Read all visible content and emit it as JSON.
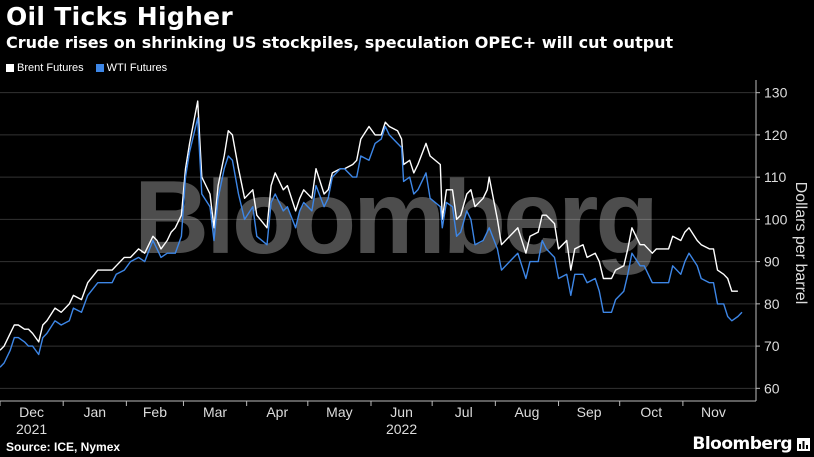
{
  "title": "Oil Ticks Higher",
  "subtitle": "Crude rises on shrinking US stockpiles, speculation OPEC+ will cut output",
  "source": "Source: ICE, Nymex",
  "brand": "Bloomberg",
  "watermark": "Bloomberg",
  "colors": {
    "brent": "#ffffff",
    "wti": "#3d86e6",
    "background": "#000000",
    "grid": "#333333"
  },
  "legend": [
    {
      "label": "Brent Futures",
      "color": "#ffffff"
    },
    {
      "label": "WTI Futures",
      "color": "#3d86e6"
    }
  ],
  "chart_data": {
    "type": "line",
    "title": "Oil Ticks Higher",
    "subtitle": "Crude rises on shrinking US stockpiles, speculation OPEC+ will cut output",
    "ylabel": "Dollars per barrel",
    "ylim": [
      57,
      133
    ],
    "yticks": [
      60,
      70,
      80,
      90,
      100,
      110,
      120,
      130
    ],
    "x_tick_labels": [
      "Dec",
      "Jan",
      "Feb",
      "Mar",
      "Apr",
      "May",
      "Jun",
      "Jul",
      "Aug",
      "Sep",
      "Oct",
      "Nov"
    ],
    "x_year_labels": [
      {
        "label": "2021",
        "month": "Dec"
      },
      {
        "label": "2022",
        "month": "Jun"
      }
    ],
    "grid": "horizontal",
    "legend_position": "top-left",
    "x_start": "2021-12-01",
    "x_end": "2022-11-30",
    "series": [
      {
        "name": "Brent Futures",
        "color": "#ffffff",
        "points": [
          [
            "2021-12-01",
            69
          ],
          [
            "2021-12-03",
            70
          ],
          [
            "2021-12-06",
            73
          ],
          [
            "2021-12-08",
            75
          ],
          [
            "2021-12-10",
            75
          ],
          [
            "2021-12-13",
            74
          ],
          [
            "2021-12-15",
            74
          ],
          [
            "2021-12-17",
            73
          ],
          [
            "2021-12-20",
            71
          ],
          [
            "2021-12-22",
            75
          ],
          [
            "2021-12-24",
            76
          ],
          [
            "2021-12-28",
            79
          ],
          [
            "2021-12-31",
            78
          ],
          [
            "2022-01-04",
            80
          ],
          [
            "2022-01-06",
            82
          ],
          [
            "2022-01-10",
            81
          ],
          [
            "2022-01-13",
            85
          ],
          [
            "2022-01-18",
            88
          ],
          [
            "2022-01-21",
            88
          ],
          [
            "2022-01-25",
            88
          ],
          [
            "2022-01-27",
            89
          ],
          [
            "2022-01-31",
            91
          ],
          [
            "2022-02-03",
            91
          ],
          [
            "2022-02-07",
            93
          ],
          [
            "2022-02-10",
            92
          ],
          [
            "2022-02-14",
            96
          ],
          [
            "2022-02-16",
            95
          ],
          [
            "2022-02-18",
            93
          ],
          [
            "2022-02-21",
            95
          ],
          [
            "2022-02-23",
            97
          ],
          [
            "2022-02-25",
            98
          ],
          [
            "2022-02-28",
            101
          ],
          [
            "2022-03-02",
            112
          ],
          [
            "2022-03-04",
            118
          ],
          [
            "2022-03-08",
            128
          ],
          [
            "2022-03-10",
            110
          ],
          [
            "2022-03-14",
            106
          ],
          [
            "2022-03-16",
            98
          ],
          [
            "2022-03-18",
            108
          ],
          [
            "2022-03-21",
            115
          ],
          [
            "2022-03-23",
            121
          ],
          [
            "2022-03-25",
            120
          ],
          [
            "2022-03-28",
            112
          ],
          [
            "2022-03-31",
            105
          ],
          [
            "2022-04-04",
            107
          ],
          [
            "2022-04-06",
            101
          ],
          [
            "2022-04-11",
            98
          ],
          [
            "2022-04-13",
            108
          ],
          [
            "2022-04-15",
            111
          ],
          [
            "2022-04-19",
            107
          ],
          [
            "2022-04-21",
            108
          ],
          [
            "2022-04-25",
            102
          ],
          [
            "2022-04-27",
            105
          ],
          [
            "2022-04-29",
            107
          ],
          [
            "2022-05-03",
            105
          ],
          [
            "2022-05-05",
            112
          ],
          [
            "2022-05-09",
            106
          ],
          [
            "2022-05-11",
            107
          ],
          [
            "2022-05-13",
            111
          ],
          [
            "2022-05-17",
            112
          ],
          [
            "2022-05-19",
            112
          ],
          [
            "2022-05-23",
            113
          ],
          [
            "2022-05-25",
            114
          ],
          [
            "2022-05-27",
            119
          ],
          [
            "2022-05-31",
            122
          ],
          [
            "2022-06-03",
            120
          ],
          [
            "2022-06-06",
            120
          ],
          [
            "2022-06-08",
            123
          ],
          [
            "2022-06-10",
            122
          ],
          [
            "2022-06-14",
            121
          ],
          [
            "2022-06-16",
            119
          ],
          [
            "2022-06-17",
            113
          ],
          [
            "2022-06-20",
            114
          ],
          [
            "2022-06-22",
            111
          ],
          [
            "2022-06-24",
            113
          ],
          [
            "2022-06-28",
            118
          ],
          [
            "2022-06-30",
            115
          ],
          [
            "2022-07-05",
            113
          ],
          [
            "2022-07-06",
            100
          ],
          [
            "2022-07-08",
            107
          ],
          [
            "2022-07-11",
            107
          ],
          [
            "2022-07-13",
            100
          ],
          [
            "2022-07-15",
            101
          ],
          [
            "2022-07-18",
            106
          ],
          [
            "2022-07-20",
            107
          ],
          [
            "2022-07-22",
            103
          ],
          [
            "2022-07-26",
            105
          ],
          [
            "2022-07-28",
            107
          ],
          [
            "2022-07-29",
            110
          ],
          [
            "2022-08-02",
            100
          ],
          [
            "2022-08-04",
            94
          ],
          [
            "2022-08-08",
            96
          ],
          [
            "2022-08-10",
            97
          ],
          [
            "2022-08-12",
            98
          ],
          [
            "2022-08-16",
            92
          ],
          [
            "2022-08-18",
            96
          ],
          [
            "2022-08-22",
            97
          ],
          [
            "2022-08-24",
            101
          ],
          [
            "2022-08-26",
            101
          ],
          [
            "2022-08-30",
            99
          ],
          [
            "2022-09-01",
            93
          ],
          [
            "2022-09-05",
            95
          ],
          [
            "2022-09-07",
            88
          ],
          [
            "2022-09-09",
            93
          ],
          [
            "2022-09-13",
            94
          ],
          [
            "2022-09-15",
            91
          ],
          [
            "2022-09-19",
            92
          ],
          [
            "2022-09-21",
            90
          ],
          [
            "2022-09-23",
            86
          ],
          [
            "2022-09-27",
            86
          ],
          [
            "2022-09-29",
            88
          ],
          [
            "2022-10-03",
            89
          ],
          [
            "2022-10-05",
            93
          ],
          [
            "2022-10-07",
            98
          ],
          [
            "2022-10-11",
            94
          ],
          [
            "2022-10-13",
            94
          ],
          [
            "2022-10-17",
            92
          ],
          [
            "2022-10-19",
            93
          ],
          [
            "2022-10-21",
            93
          ],
          [
            "2022-10-25",
            93
          ],
          [
            "2022-10-27",
            96
          ],
          [
            "2022-10-31",
            95
          ],
          [
            "2022-11-02",
            97
          ],
          [
            "2022-11-04",
            98
          ],
          [
            "2022-11-08",
            95
          ],
          [
            "2022-11-10",
            94
          ],
          [
            "2022-11-14",
            93
          ],
          [
            "2022-11-16",
            93
          ],
          [
            "2022-11-18",
            88
          ],
          [
            "2022-11-21",
            87
          ],
          [
            "2022-11-23",
            86
          ],
          [
            "2022-11-25",
            83
          ],
          [
            "2022-11-28",
            83
          ]
        ]
      },
      {
        "name": "WTI Futures",
        "color": "#3d86e6",
        "points": [
          [
            "2021-12-01",
            65
          ],
          [
            "2021-12-03",
            66
          ],
          [
            "2021-12-06",
            69
          ],
          [
            "2021-12-08",
            72
          ],
          [
            "2021-12-10",
            72
          ],
          [
            "2021-12-13",
            71
          ],
          [
            "2021-12-15",
            70
          ],
          [
            "2021-12-17",
            70
          ],
          [
            "2021-12-20",
            68
          ],
          [
            "2021-12-22",
            72
          ],
          [
            "2021-12-24",
            73
          ],
          [
            "2021-12-28",
            76
          ],
          [
            "2021-12-31",
            75
          ],
          [
            "2022-01-04",
            76
          ],
          [
            "2022-01-06",
            79
          ],
          [
            "2022-01-10",
            78
          ],
          [
            "2022-01-13",
            82
          ],
          [
            "2022-01-18",
            85
          ],
          [
            "2022-01-21",
            85
          ],
          [
            "2022-01-25",
            85
          ],
          [
            "2022-01-27",
            87
          ],
          [
            "2022-01-31",
            88
          ],
          [
            "2022-02-03",
            90
          ],
          [
            "2022-02-07",
            91
          ],
          [
            "2022-02-10",
            90
          ],
          [
            "2022-02-14",
            95
          ],
          [
            "2022-02-16",
            93
          ],
          [
            "2022-02-18",
            91
          ],
          [
            "2022-02-21",
            92
          ],
          [
            "2022-02-23",
            92
          ],
          [
            "2022-02-25",
            92
          ],
          [
            "2022-02-28",
            96
          ],
          [
            "2022-03-02",
            110
          ],
          [
            "2022-03-04",
            116
          ],
          [
            "2022-03-08",
            124
          ],
          [
            "2022-03-10",
            106
          ],
          [
            "2022-03-14",
            103
          ],
          [
            "2022-03-16",
            95
          ],
          [
            "2022-03-18",
            105
          ],
          [
            "2022-03-21",
            112
          ],
          [
            "2022-03-23",
            115
          ],
          [
            "2022-03-25",
            114
          ],
          [
            "2022-03-28",
            106
          ],
          [
            "2022-03-31",
            100
          ],
          [
            "2022-04-04",
            103
          ],
          [
            "2022-04-06",
            96
          ],
          [
            "2022-04-11",
            94
          ],
          [
            "2022-04-13",
            104
          ],
          [
            "2022-04-15",
            106
          ],
          [
            "2022-04-19",
            102
          ],
          [
            "2022-04-21",
            103
          ],
          [
            "2022-04-25",
            98
          ],
          [
            "2022-04-27",
            102
          ],
          [
            "2022-04-29",
            104
          ],
          [
            "2022-05-03",
            102
          ],
          [
            "2022-05-05",
            108
          ],
          [
            "2022-05-09",
            103
          ],
          [
            "2022-05-11",
            105
          ],
          [
            "2022-05-13",
            110
          ],
          [
            "2022-05-17",
            112
          ],
          [
            "2022-05-19",
            112
          ],
          [
            "2022-05-23",
            110
          ],
          [
            "2022-05-25",
            110
          ],
          [
            "2022-05-27",
            115
          ],
          [
            "2022-05-31",
            114
          ],
          [
            "2022-06-03",
            118
          ],
          [
            "2022-06-06",
            119
          ],
          [
            "2022-06-08",
            122
          ],
          [
            "2022-06-10",
            120
          ],
          [
            "2022-06-14",
            118
          ],
          [
            "2022-06-16",
            117
          ],
          [
            "2022-06-17",
            109
          ],
          [
            "2022-06-20",
            110
          ],
          [
            "2022-06-22",
            106
          ],
          [
            "2022-06-24",
            107
          ],
          [
            "2022-06-28",
            111
          ],
          [
            "2022-06-30",
            105
          ],
          [
            "2022-07-05",
            103
          ],
          [
            "2022-07-06",
            98
          ],
          [
            "2022-07-08",
            104
          ],
          [
            "2022-07-11",
            103
          ],
          [
            "2022-07-13",
            96
          ],
          [
            "2022-07-15",
            97
          ],
          [
            "2022-07-18",
            102
          ],
          [
            "2022-07-20",
            100
          ],
          [
            "2022-07-22",
            94
          ],
          [
            "2022-07-26",
            95
          ],
          [
            "2022-07-28",
            97
          ],
          [
            "2022-07-29",
            98
          ],
          [
            "2022-08-02",
            93
          ],
          [
            "2022-08-04",
            88
          ],
          [
            "2022-08-08",
            90
          ],
          [
            "2022-08-10",
            91
          ],
          [
            "2022-08-12",
            92
          ],
          [
            "2022-08-16",
            86
          ],
          [
            "2022-08-18",
            90
          ],
          [
            "2022-08-22",
            90
          ],
          [
            "2022-08-24",
            95
          ],
          [
            "2022-08-26",
            93
          ],
          [
            "2022-08-30",
            91
          ],
          [
            "2022-09-01",
            86
          ],
          [
            "2022-09-05",
            87
          ],
          [
            "2022-09-07",
            82
          ],
          [
            "2022-09-09",
            87
          ],
          [
            "2022-09-13",
            87
          ],
          [
            "2022-09-15",
            85
          ],
          [
            "2022-09-19",
            86
          ],
          [
            "2022-09-21",
            83
          ],
          [
            "2022-09-23",
            78
          ],
          [
            "2022-09-27",
            78
          ],
          [
            "2022-09-29",
            81
          ],
          [
            "2022-10-03",
            83
          ],
          [
            "2022-10-05",
            87
          ],
          [
            "2022-10-07",
            92
          ],
          [
            "2022-10-11",
            89
          ],
          [
            "2022-10-13",
            89
          ],
          [
            "2022-10-17",
            85
          ],
          [
            "2022-10-19",
            85
          ],
          [
            "2022-10-21",
            85
          ],
          [
            "2022-10-25",
            85
          ],
          [
            "2022-10-27",
            89
          ],
          [
            "2022-10-31",
            87
          ],
          [
            "2022-11-02",
            90
          ],
          [
            "2022-11-04",
            92
          ],
          [
            "2022-11-08",
            89
          ],
          [
            "2022-11-10",
            86
          ],
          [
            "2022-11-14",
            85
          ],
          [
            "2022-11-16",
            85
          ],
          [
            "2022-11-18",
            80
          ],
          [
            "2022-11-21",
            80
          ],
          [
            "2022-11-23",
            77
          ],
          [
            "2022-11-25",
            76
          ],
          [
            "2022-11-28",
            77
          ],
          [
            "2022-11-30",
            78
          ]
        ]
      }
    ]
  }
}
